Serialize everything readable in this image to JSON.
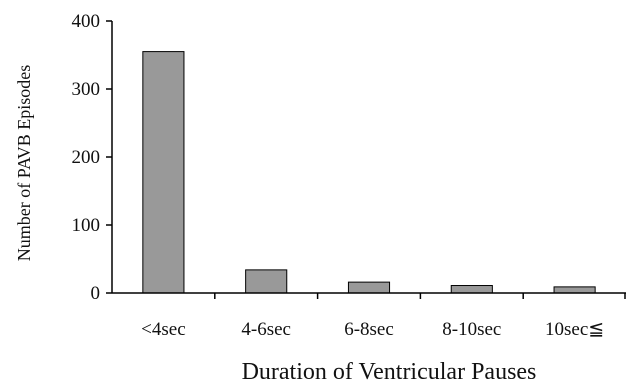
{
  "chart_data": {
    "type": "bar",
    "categories": [
      "<4sec",
      "4-6sec",
      "6-8sec",
      "8-10sec",
      "10sec≦"
    ],
    "values": [
      355,
      34,
      16,
      11,
      9
    ],
    "xlabel": "Duration of Ventricular Pauses",
    "ylabel": "Number of PAVB Episodes",
    "ylim": [
      0,
      400
    ],
    "yticks": [
      0,
      100,
      200,
      300,
      400
    ],
    "grid": false,
    "bar_color": "#999999",
    "bar_edge_color": "#000000"
  }
}
